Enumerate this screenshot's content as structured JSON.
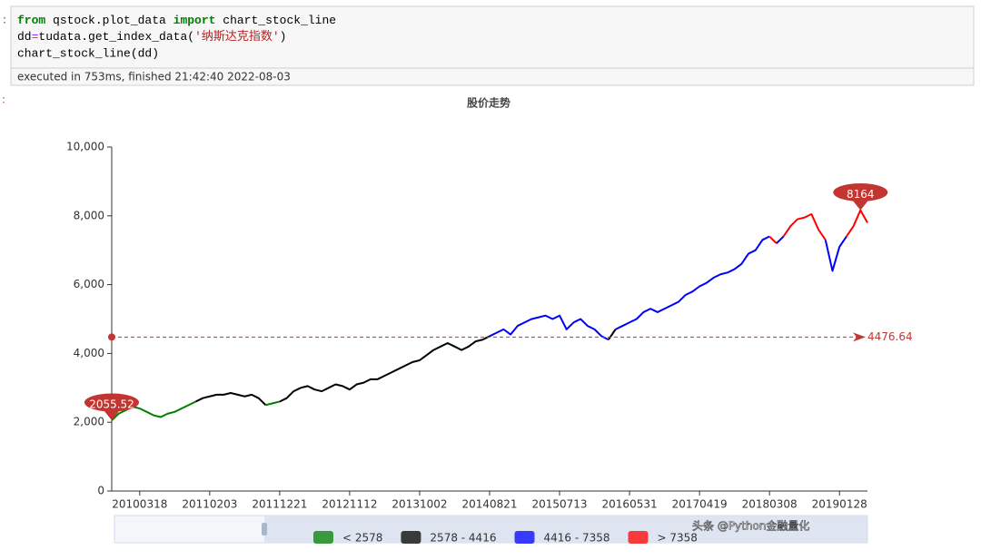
{
  "cell": {
    "prompt": ":",
    "code": [
      [
        "from",
        " qstock.plot_data ",
        "import",
        " chart_stock_line"
      ],
      [
        "dd",
        "=",
        "tudata.get_index_data(",
        "'纳斯达克指数'",
        ")"
      ],
      [
        "chart_stock_line(dd)"
      ]
    ],
    "status": "executed in 753ms, finished 21:42:40 2022-08-03"
  },
  "output_prompt": ":",
  "watermark": "头条 @Python金融量化",
  "chart_data": {
    "type": "line",
    "title": "股价走势",
    "categories": [
      null,
      null,
      null,
      null,
      "20100318",
      null,
      null,
      null,
      null,
      null,
      null,
      null,
      null,
      null,
      "20110203",
      null,
      null,
      null,
      null,
      null,
      null,
      null,
      null,
      null,
      "20111221",
      null,
      null,
      null,
      null,
      null,
      null,
      null,
      null,
      null,
      "20121112",
      null,
      null,
      null,
      null,
      null,
      null,
      null,
      null,
      null,
      "20131002",
      null,
      null,
      null,
      null,
      null,
      null,
      null,
      null,
      null,
      "20140821",
      null,
      null,
      null,
      null,
      null,
      null,
      null,
      null,
      null,
      "20150713",
      null,
      null,
      null,
      null,
      null,
      null,
      null,
      null,
      null,
      "20160531",
      null,
      null,
      null,
      null,
      null,
      null,
      null,
      null,
      null,
      "20170419",
      null,
      null,
      null,
      null,
      null,
      null,
      null,
      null,
      null,
      "20180308",
      null,
      null,
      null,
      null,
      null,
      null,
      null,
      null,
      null,
      "20190128",
      null,
      null,
      null,
      null
    ],
    "values": [
      2055.52,
      2250,
      2350,
      2450,
      2400,
      2300,
      2200,
      2150,
      2250,
      2300,
      2400,
      2500,
      2600,
      2700,
      2750,
      2800,
      2800,
      2850,
      2800,
      2750,
      2800,
      2700,
      2500,
      2550,
      2600,
      2700,
      2900,
      3000,
      3050,
      2950,
      2900,
      3000,
      3100,
      3050,
      2950,
      3100,
      3150,
      3250,
      3250,
      3350,
      3450,
      3550,
      3650,
      3750,
      3800,
      3950,
      4100,
      4200,
      4300,
      4200,
      4100,
      4200,
      4350,
      4400,
      4500,
      4600,
      4700,
      4550,
      4800,
      4900,
      5000,
      5050,
      5100,
      5000,
      5100,
      4700,
      4900,
      5000,
      4800,
      4700,
      4500,
      4400,
      4700,
      4800,
      4900,
      5000,
      5200,
      5300,
      5200,
      5300,
      5400,
      5500,
      5700,
      5800,
      5950,
      6050,
      6200,
      6300,
      6350,
      6450,
      6600,
      6900,
      7000,
      7300,
      7400,
      7200,
      7400,
      7700,
      7900,
      7950,
      8050,
      7600,
      7300,
      6400,
      7100,
      7400,
      7700,
      8164,
      7800
    ],
    "ylim": [
      0,
      10000
    ],
    "yticks": [
      0,
      {
        "value": 2000,
        "label": "2,000"
      },
      {
        "value": 4000,
        "label": "4,000"
      },
      {
        "value": 6000,
        "label": "6,000"
      },
      {
        "value": 8000,
        "label": "8,000"
      },
      {
        "value": 10000,
        "label": "10,000"
      }
    ],
    "pieces": [
      {
        "label": "< 2578",
        "max": 2578,
        "color": "#008000"
      },
      {
        "label": "2578 - 4416",
        "min": 2578,
        "max": 4416,
        "color": "#000000"
      },
      {
        "label": "4416 - 7358",
        "min": 4416,
        "max": 7358,
        "color": "#0000ff"
      },
      {
        "label": "> 7358",
        "min": 7358,
        "color": "#ff0000"
      }
    ],
    "max_point": 8164,
    "min_point": 2055.52,
    "average_line": 4476.64
  }
}
